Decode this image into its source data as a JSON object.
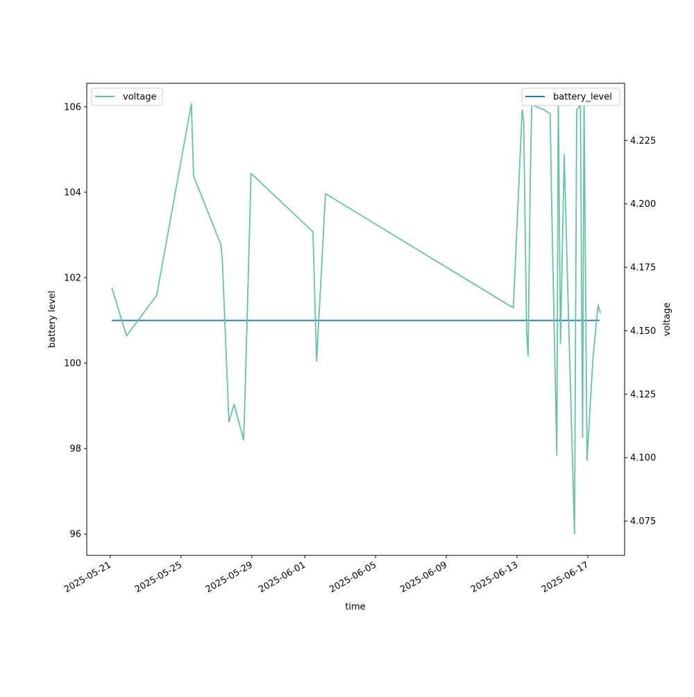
{
  "chart_data": {
    "type": "line",
    "xlabel": "time",
    "ylabel_left": "battery level",
    "ylabel_right": "voltage",
    "x_range": [
      "2025-05-19T16:00",
      "2025-06-19T02:00"
    ],
    "x_ticks": [
      "2025-05-21",
      "2025-05-25",
      "2025-05-29",
      "2025-06-01",
      "2025-06-05",
      "2025-06-09",
      "2025-06-13",
      "2025-06-17"
    ],
    "y_left_range": [
      95.5,
      106.55
    ],
    "y_left_ticks": [
      "96",
      "98",
      "100",
      "102",
      "104",
      "106"
    ],
    "y_right_range": [
      4.0615,
      4.2475
    ],
    "y_right_ticks": [
      "4.075",
      "4.100",
      "4.125",
      "4.150",
      "4.175",
      "4.200",
      "4.225"
    ],
    "grid": false,
    "legend_left": {
      "placement": "top-left",
      "entries": [
        "voltage"
      ]
    },
    "legend_right": {
      "placement": "top-right",
      "entries": [
        "battery_level"
      ]
    },
    "colors": {
      "voltage": "#66c2a5",
      "battery_level": "#1f77b4"
    },
    "series": [
      {
        "name": "battery_level",
        "axis": "left",
        "x": [
          "2025-05-21T02:00",
          "2025-06-17T16:00"
        ],
        "y": [
          101.0,
          101.0
        ]
      },
      {
        "name": "voltage",
        "axis": "right",
        "x": [
          "2025-05-21T02:00",
          "2025-05-21T22:00",
          "2025-05-23T15:00",
          "2025-05-25T14:00",
          "2025-05-25T17:00",
          "2025-05-27T06:00",
          "2025-05-27T08:00",
          "2025-05-27T17:00",
          "2025-05-28T00:00",
          "2025-05-28T13:00",
          "2025-05-28T16:00",
          "2025-05-28T23:00",
          "2025-06-01T11:00",
          "2025-06-01T16:00",
          "2025-06-02T04:00",
          "2025-06-12T19:00",
          "2025-06-13T07:00",
          "2025-06-13T09:00",
          "2025-06-13T13:00",
          "2025-06-13T15:00",
          "2025-06-13T18:00",
          "2025-06-13T20:00",
          "2025-06-14T13:00",
          "2025-06-14T21:00",
          "2025-06-14T23:00",
          "2025-06-15T06:00",
          "2025-06-15T08:00",
          "2025-06-15T11:00",
          "2025-06-15T16:00",
          "2025-06-15T21:00",
          "2025-06-16T06:00",
          "2025-06-16T09:00",
          "2025-06-16T14:00",
          "2025-06-16T17:00",
          "2025-06-16T19:00",
          "2025-06-16T23:00",
          "2025-06-17T07:00",
          "2025-06-17T14:00",
          "2025-06-17T17:00"
        ],
        "y": [
          4.167,
          4.148,
          4.164,
          4.2395,
          4.211,
          4.184,
          4.178,
          4.114,
          4.121,
          4.107,
          4.137,
          4.212,
          4.189,
          4.138,
          4.204,
          4.159,
          4.237,
          4.233,
          4.15,
          4.14,
          4.21,
          4.239,
          4.237,
          4.2355,
          4.2,
          4.101,
          4.242,
          4.145,
          4.2195,
          4.165,
          4.07,
          4.237,
          4.239,
          4.108,
          4.242,
          4.099,
          4.139,
          4.16,
          4.157
        ]
      }
    ]
  }
}
